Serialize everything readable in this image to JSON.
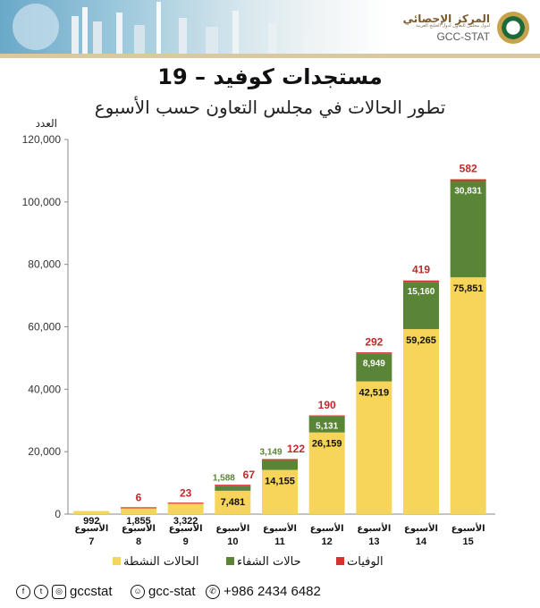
{
  "header": {
    "logo_ar": "المركز الإحصائي",
    "logo_sub": "لدول مجلس التعاون لدول الخليج العربية",
    "logo_en": "GCC-STAT",
    "emblem_icon": "gcc-emblem-icon"
  },
  "title": "مستجدات كوفيد – 19",
  "subtitle": "تطور الحالات في مجلس التعاون حسب الأسبوع",
  "chart_data": {
    "type": "bar",
    "stacked": true,
    "ylabel": "العدد",
    "ylim": [
      0,
      120000
    ],
    "yticks": [
      0,
      20000,
      40000,
      60000,
      80000,
      100000,
      120000
    ],
    "ytick_labels": [
      "0",
      "20,000",
      "40,000",
      "60,000",
      "80,000",
      "100,000",
      "120,000"
    ],
    "category_word": "الأسبوع",
    "categories": [
      "7",
      "8",
      "9",
      "10",
      "11",
      "12",
      "13",
      "14",
      "15"
    ],
    "series": [
      {
        "name": "الحالات النشطة",
        "color": "#f7d45a",
        "values": [
          992,
          1855,
          3322,
          7481,
          14155,
          26159,
          42519,
          59265,
          75851
        ],
        "labels": [
          "992",
          "1,855",
          "3,322",
          "7,481",
          "14,155",
          "26,159",
          "42,519",
          "59,265",
          "75,851"
        ]
      },
      {
        "name": "حالات الشفاء",
        "color": "#5a8537",
        "values": [
          0,
          0,
          0,
          1588,
          3149,
          5131,
          8949,
          15160,
          30831
        ],
        "labels": [
          "",
          "",
          "",
          "1,588",
          "3,149",
          "5,131",
          "8,949",
          "15,160",
          "30,831"
        ]
      },
      {
        "name": "الوفيات",
        "color": "#d9322b",
        "values": [
          0,
          6,
          23,
          67,
          122,
          190,
          292,
          419,
          582
        ],
        "labels": [
          "",
          "6",
          "23",
          "67",
          "122",
          "190",
          "292",
          "419",
          "582"
        ]
      }
    ],
    "legend_position": "bottom",
    "grid": false
  },
  "footer": {
    "handle": "gccstat",
    "snapchat": "gcc-stat",
    "whatsapp": "+986 2434 6482"
  }
}
